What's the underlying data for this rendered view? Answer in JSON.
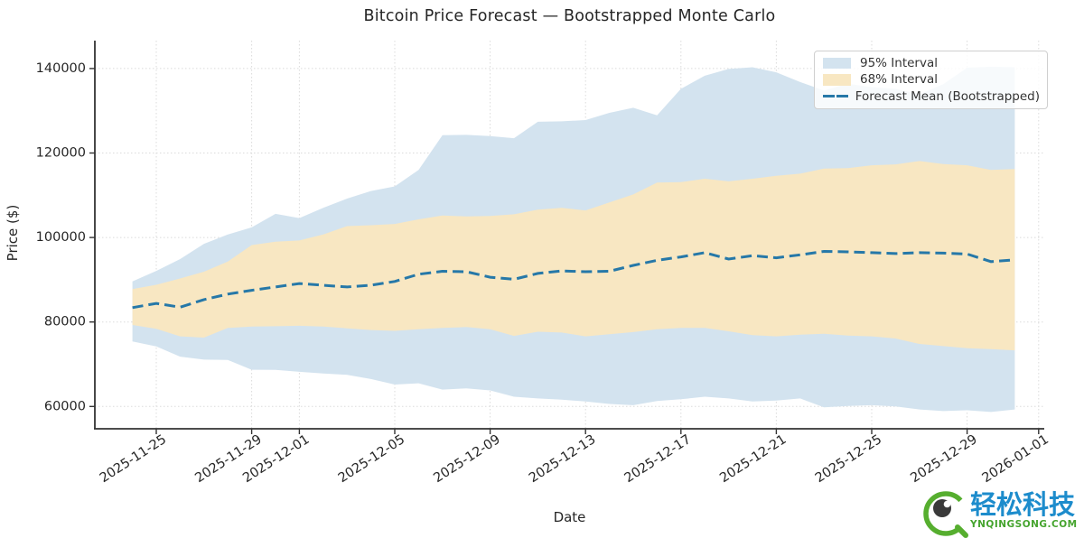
{
  "chart_data": {
    "type": "area",
    "title": "Bitcoin Price Forecast — Bootstrapped Monte Carlo",
    "xlabel": "Date",
    "ylabel": "Price ($)",
    "legend_position": "upper right",
    "grid": true,
    "ylim": [
      54700,
      146600
    ],
    "y_ticks": [
      60000,
      80000,
      100000,
      120000,
      140000
    ],
    "x_tick_labels": [
      "2025-11-25",
      "2025-11-29",
      "2025-12-01",
      "2025-12-05",
      "2025-12-09",
      "2025-12-13",
      "2025-12-17",
      "2025-12-21",
      "2025-12-25",
      "2025-12-29",
      "2026-01-01"
    ],
    "legend": [
      {
        "label": "95% Interval",
        "type": "patch"
      },
      {
        "label": "68% Interval",
        "type": "patch"
      },
      {
        "label": "Forecast Mean (Bootstrapped)",
        "type": "dashed-line"
      }
    ],
    "series": {
      "dates": [
        "2025-11-24",
        "2025-11-25",
        "2025-11-26",
        "2025-11-27",
        "2025-11-28",
        "2025-11-29",
        "2025-11-30",
        "2025-12-01",
        "2025-12-02",
        "2025-12-03",
        "2025-12-04",
        "2025-12-05",
        "2025-12-06",
        "2025-12-07",
        "2025-12-08",
        "2025-12-09",
        "2025-12-10",
        "2025-12-11",
        "2025-12-12",
        "2025-12-13",
        "2025-12-14",
        "2025-12-15",
        "2025-12-16",
        "2025-12-17",
        "2025-12-18",
        "2025-12-19",
        "2025-12-20",
        "2025-12-21",
        "2025-12-22",
        "2025-12-23",
        "2025-12-24",
        "2025-12-25",
        "2025-12-26",
        "2025-12-27",
        "2025-12-28",
        "2025-12-29",
        "2025-12-30",
        "2025-12-31"
      ],
      "forecast_mean": [
        83400,
        84400,
        83500,
        85300,
        86600,
        87500,
        88300,
        89100,
        88700,
        88300,
        88700,
        89600,
        91300,
        92000,
        91900,
        90600,
        90100,
        91500,
        92100,
        91900,
        92000,
        93400,
        94600,
        95400,
        96400,
        94900,
        95700,
        95200,
        95900,
        96700,
        96600,
        96400,
        96200,
        96400,
        96300,
        96100,
        94300,
        94700
      ],
      "upper_95": [
        89600,
        92100,
        94900,
        98500,
        100700,
        102400,
        105600,
        104600,
        107000,
        109200,
        111000,
        112100,
        116000,
        124200,
        124300,
        124000,
        123500,
        127400,
        127500,
        127800,
        129500,
        130700,
        128900,
        135200,
        138300,
        139900,
        140300,
        139100,
        136800,
        134800,
        136400,
        135600,
        135200,
        133900,
        136300,
        140200,
        140400,
        140300
      ],
      "lower_95": [
        75400,
        74200,
        71800,
        71100,
        71000,
        68700,
        68650,
        68200,
        67800,
        67500,
        66500,
        65200,
        65500,
        64000,
        64300,
        63800,
        62300,
        61900,
        61600,
        61200,
        60600,
        60300,
        61300,
        61700,
        62300,
        61900,
        61200,
        61400,
        61900,
        59800,
        60100,
        60300,
        60000,
        59300,
        58900,
        59100,
        58700,
        59300
      ],
      "upper_68": [
        87800,
        88800,
        90300,
        91900,
        94300,
        98200,
        99000,
        99300,
        100700,
        102700,
        102900,
        103200,
        104300,
        105200,
        105000,
        105100,
        105500,
        106600,
        107000,
        106400,
        108300,
        110200,
        113000,
        113100,
        113900,
        113300,
        113900,
        114600,
        115100,
        116300,
        116400,
        117100,
        117300,
        118100,
        117400,
        117100,
        116000,
        116200
      ],
      "lower_68": [
        79300,
        78400,
        76600,
        76300,
        78600,
        78900,
        79000,
        79100,
        78900,
        78500,
        78100,
        77900,
        78300,
        78600,
        78800,
        78300,
        76700,
        77700,
        77500,
        76600,
        77100,
        77600,
        78300,
        78600,
        78600,
        77800,
        76900,
        76600,
        77000,
        77200,
        76800,
        76600,
        76100,
        74800,
        74300,
        73800,
        73600,
        73300
      ]
    },
    "colors": {
      "band_95": "#d3e3ef",
      "band_68": "#f8e7c2",
      "mean_line": "#2678a8",
      "spine": "#333333",
      "grid": "#c8c8c8",
      "tick_label": "#262626"
    }
  },
  "watermark": {
    "brand_cn": "轻松科技",
    "site": "YNQINGSONG.COM",
    "brand_color": "#1d8ccc",
    "site_color": "#45a42e",
    "logo_green": "#56ae2f",
    "logo_pupil": "#3a3a3a"
  }
}
